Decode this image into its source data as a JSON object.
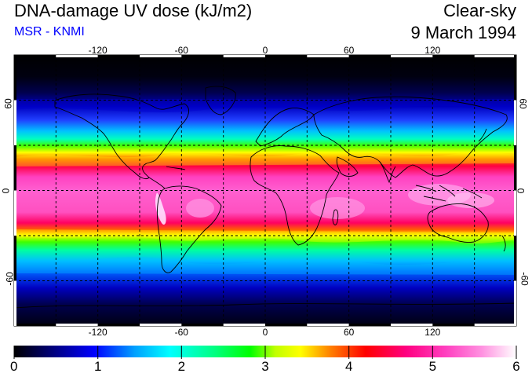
{
  "header": {
    "title": "DNA-damage UV dose (kJ/m2)",
    "subtitle": "MSR - KNMI",
    "condition": "Clear-sky",
    "date": "9 March 1994"
  },
  "map": {
    "lon_ticks_top": [
      "-120",
      "-60",
      "0",
      "60",
      "120"
    ],
    "lon_ticks_bottom": [
      "-120",
      "-60",
      "0",
      "60",
      "120"
    ],
    "lat_ticks_left": [
      "60",
      "0",
      "-60"
    ],
    "lat_ticks_right": [
      "60",
      "0",
      "-60"
    ],
    "projection": "equirectangular",
    "lon_range": [
      -180,
      180
    ],
    "lat_range": [
      -90,
      90
    ],
    "gridlines": "dashed every 30 degrees"
  },
  "colorbar": {
    "labels": [
      "0",
      "1",
      "2",
      "3",
      "4",
      "5",
      "6"
    ],
    "range": [
      0,
      6
    ],
    "colors": [
      "#000000",
      "#000080",
      "#0000ff",
      "#00a0ff",
      "#00ffff",
      "#00ff80",
      "#00ff00",
      "#c0ff00",
      "#ffff00",
      "#ff8000",
      "#ff0000",
      "#ff0080",
      "#ff40c0",
      "#ff90e0",
      "#ffffff"
    ]
  },
  "colors": {
    "title": "#000000",
    "subtitle": "#0000ff"
  }
}
